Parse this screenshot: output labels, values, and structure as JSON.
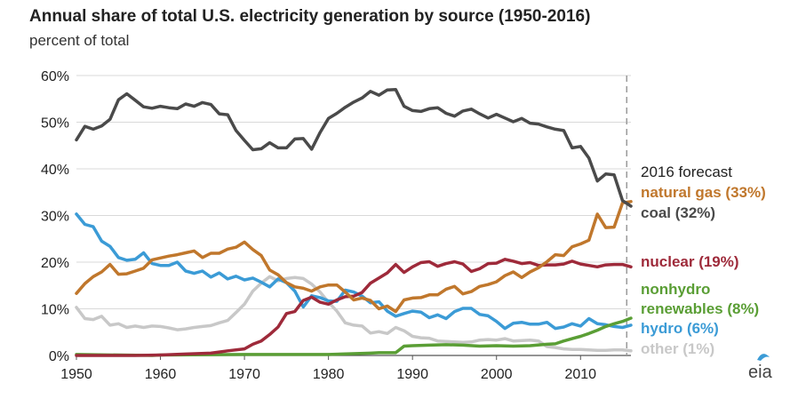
{
  "chart_data": {
    "type": "line",
    "title": "Annual share of total U.S. electricity generation by source (1950-2016)",
    "subtitle": "percent of total",
    "xlabel": "",
    "ylabel": "",
    "xlim": [
      1950,
      2016
    ],
    "ylim": [
      0,
      60
    ],
    "xticks": [
      1950,
      1960,
      1970,
      1980,
      1990,
      2000,
      2010
    ],
    "yticks": [
      0,
      10,
      20,
      30,
      40,
      50,
      60
    ],
    "ytick_labels": [
      "0%",
      "10%",
      "20%",
      "30%",
      "40%",
      "50%",
      "60%"
    ],
    "grid": "horizontal",
    "forecast_year": 2015.5,
    "forecast_label": "2016 forecast",
    "series": [
      {
        "name": "coal",
        "label": "coal (32%)",
        "color": "#4a4a4a",
        "x": [
          1950,
          1951,
          1952,
          1953,
          1954,
          1955,
          1956,
          1957,
          1958,
          1959,
          1960,
          1961,
          1962,
          1963,
          1964,
          1965,
          1966,
          1967,
          1968,
          1969,
          1970,
          1971,
          1972,
          1973,
          1974,
          1975,
          1976,
          1977,
          1978,
          1979,
          1980,
          1981,
          1982,
          1983,
          1984,
          1985,
          1986,
          1987,
          1988,
          1989,
          1990,
          1991,
          1992,
          1993,
          1994,
          1995,
          1996,
          1997,
          1998,
          1999,
          2000,
          2001,
          2002,
          2003,
          2004,
          2005,
          2006,
          2007,
          2008,
          2009,
          2010,
          2011,
          2012,
          2013,
          2014,
          2015,
          2016
        ],
        "y": [
          46.2,
          49.1,
          48.5,
          49.2,
          50.6,
          54.8,
          56.1,
          54.7,
          53.3,
          53.0,
          53.4,
          53.1,
          52.9,
          53.9,
          53.4,
          54.2,
          53.8,
          51.8,
          51.6,
          48.2,
          46.1,
          44.1,
          44.3,
          45.6,
          44.5,
          44.5,
          46.4,
          46.5,
          44.2,
          47.8,
          50.8,
          51.9,
          53.2,
          54.3,
          55.2,
          56.6,
          55.8,
          56.9,
          57.0,
          53.4,
          52.5,
          52.3,
          52.9,
          53.1,
          51.9,
          51.3,
          52.4,
          52.8,
          51.8,
          50.9,
          51.7,
          50.9,
          50.1,
          50.8,
          49.8,
          49.6,
          49.0,
          48.5,
          48.2,
          44.5,
          44.8,
          42.3,
          37.4,
          38.9,
          38.7,
          33.2,
          32.0
        ]
      },
      {
        "name": "natural gas",
        "label": "natural gas (33%)",
        "color": "#c0772c",
        "x": [
          1950,
          1951,
          1952,
          1953,
          1954,
          1955,
          1956,
          1957,
          1958,
          1959,
          1960,
          1961,
          1962,
          1963,
          1964,
          1965,
          1966,
          1967,
          1968,
          1969,
          1970,
          1971,
          1972,
          1973,
          1974,
          1975,
          1976,
          1977,
          1978,
          1979,
          1980,
          1981,
          1982,
          1983,
          1984,
          1985,
          1986,
          1987,
          1988,
          1989,
          1990,
          1991,
          1992,
          1993,
          1994,
          1995,
          1996,
          1997,
          1998,
          1999,
          2000,
          2001,
          2002,
          2003,
          2004,
          2005,
          2006,
          2007,
          2008,
          2009,
          2010,
          2011,
          2012,
          2013,
          2014,
          2015,
          2016
        ],
        "y": [
          13.3,
          15.4,
          16.9,
          17.9,
          19.5,
          17.4,
          17.5,
          18.1,
          18.7,
          20.5,
          20.9,
          21.3,
          21.6,
          22.0,
          22.4,
          21.0,
          21.9,
          21.9,
          22.8,
          23.2,
          24.3,
          22.7,
          21.4,
          18.3,
          17.3,
          15.6,
          14.7,
          14.4,
          13.8,
          14.7,
          15.1,
          15.1,
          13.6,
          11.9,
          12.3,
          11.8,
          10.0,
          10.6,
          9.4,
          11.9,
          12.3,
          12.4,
          13.0,
          13.0,
          14.2,
          14.8,
          13.2,
          13.7,
          14.8,
          15.2,
          15.8,
          17.1,
          17.9,
          16.7,
          17.9,
          18.8,
          20.1,
          21.6,
          21.4,
          23.3,
          23.9,
          24.7,
          30.3,
          27.4,
          27.5,
          32.7,
          33.0
        ]
      },
      {
        "name": "nuclear",
        "label": "nuclear (19%)",
        "color": "#9e2a3a",
        "x": [
          1950,
          1957,
          1960,
          1963,
          1966,
          1968,
          1970,
          1971,
          1972,
          1973,
          1974,
          1975,
          1976,
          1977,
          1978,
          1979,
          1980,
          1981,
          1982,
          1983,
          1984,
          1985,
          1986,
          1987,
          1988,
          1989,
          1990,
          1991,
          1992,
          1993,
          1994,
          1995,
          1996,
          1997,
          1998,
          1999,
          2000,
          2001,
          2002,
          2003,
          2004,
          2005,
          2006,
          2007,
          2008,
          2009,
          2010,
          2011,
          2012,
          2013,
          2014,
          2015,
          2016
        ],
        "y": [
          0,
          0,
          0.1,
          0.3,
          0.5,
          1.0,
          1.4,
          2.4,
          3.1,
          4.5,
          6.1,
          9.0,
          9.4,
          11.8,
          12.5,
          11.4,
          11.0,
          11.9,
          12.6,
          12.7,
          13.5,
          15.5,
          16.6,
          17.7,
          19.5,
          17.8,
          19.0,
          19.9,
          20.1,
          19.1,
          19.7,
          20.1,
          19.6,
          18.0,
          18.6,
          19.7,
          19.8,
          20.6,
          20.2,
          19.7,
          19.9,
          19.3,
          19.4,
          19.4,
          19.6,
          20.2,
          19.6,
          19.3,
          19.0,
          19.4,
          19.5,
          19.5,
          19.0
        ]
      },
      {
        "name": "nonhydro renewables",
        "label_lines": [
          "nonhydro",
          "renewables (8%)"
        ],
        "color": "#5a9e35",
        "x": [
          1950,
          1959,
          1960,
          1970,
          1980,
          1985,
          1986,
          1987,
          1988,
          1989,
          1990,
          1992,
          1994,
          1996,
          1998,
          2000,
          2002,
          2004,
          2006,
          2007,
          2008,
          2009,
          2010,
          2011,
          2012,
          2013,
          2014,
          2015,
          2016
        ],
        "y": [
          0.2,
          0,
          0.1,
          0.2,
          0.2,
          0.5,
          0.6,
          0.6,
          0.6,
          2.0,
          2.1,
          2.2,
          2.3,
          2.2,
          2.0,
          2.1,
          2.0,
          2.1,
          2.4,
          2.5,
          3.1,
          3.6,
          4.1,
          4.7,
          5.4,
          6.2,
          6.8,
          7.3,
          8.0
        ]
      },
      {
        "name": "hydro",
        "label": "hydro (6%)",
        "color": "#3b9bd6",
        "x": [
          1950,
          1951,
          1952,
          1953,
          1954,
          1955,
          1956,
          1957,
          1958,
          1959,
          1960,
          1961,
          1962,
          1963,
          1964,
          1965,
          1966,
          1967,
          1968,
          1969,
          1970,
          1971,
          1972,
          1973,
          1974,
          1975,
          1976,
          1977,
          1978,
          1979,
          1980,
          1981,
          1982,
          1983,
          1984,
          1985,
          1986,
          1987,
          1988,
          1989,
          1990,
          1991,
          1992,
          1993,
          1994,
          1995,
          1996,
          1997,
          1998,
          1999,
          2000,
          2001,
          2002,
          2003,
          2004,
          2005,
          2006,
          2007,
          2008,
          2009,
          2010,
          2011,
          2012,
          2013,
          2014,
          2015,
          2016
        ],
        "y": [
          30.3,
          28.1,
          27.6,
          24.5,
          23.4,
          21.0,
          20.4,
          20.6,
          22.0,
          19.7,
          19.3,
          19.3,
          20.0,
          18.1,
          17.6,
          18.1,
          16.8,
          17.7,
          16.4,
          17.0,
          16.2,
          16.6,
          15.7,
          14.7,
          16.4,
          15.6,
          13.8,
          10.4,
          12.8,
          12.4,
          11.7,
          11.6,
          14.0,
          13.6,
          12.7,
          11.3,
          11.5,
          9.5,
          8.4,
          9.0,
          9.5,
          9.3,
          8.1,
          8.7,
          7.9,
          9.4,
          10.1,
          10.1,
          8.8,
          8.5,
          7.3,
          5.8,
          6.9,
          7.1,
          6.7,
          6.7,
          7.1,
          5.8,
          6.1,
          6.8,
          6.3,
          7.9,
          6.8,
          6.6,
          6.2,
          6.0,
          6.5
        ]
      },
      {
        "name": "other",
        "label": "other (1%)",
        "color": "#c8c8c8",
        "x": [
          1950,
          1951,
          1952,
          1953,
          1954,
          1955,
          1956,
          1957,
          1958,
          1959,
          1960,
          1961,
          1962,
          1963,
          1964,
          1965,
          1966,
          1967,
          1968,
          1969,
          1970,
          1971,
          1972,
          1973,
          1974,
          1975,
          1976,
          1977,
          1978,
          1979,
          1980,
          1981,
          1982,
          1983,
          1984,
          1985,
          1986,
          1987,
          1988,
          1989,
          1990,
          1991,
          1992,
          1993,
          1994,
          1995,
          1996,
          1997,
          1998,
          1999,
          2000,
          2001,
          2002,
          2003,
          2004,
          2005,
          2006,
          2007,
          2008,
          2009,
          2010,
          2011,
          2012,
          2013,
          2014,
          2015,
          2016
        ],
        "y": [
          10.3,
          7.9,
          7.7,
          8.4,
          6.5,
          6.8,
          6.0,
          6.3,
          6.0,
          6.3,
          6.2,
          5.9,
          5.5,
          5.7,
          6.0,
          6.2,
          6.4,
          7.0,
          7.5,
          9.2,
          11.0,
          13.8,
          15.5,
          16.9,
          16.0,
          16.5,
          16.7,
          16.5,
          15.3,
          13.6,
          11.4,
          9.5,
          7.0,
          6.5,
          6.3,
          4.8,
          5.1,
          4.7,
          6.0,
          5.3,
          4.1,
          3.8,
          3.7,
          3.1,
          3.0,
          2.9,
          2.8,
          2.9,
          3.3,
          3.4,
          3.3,
          3.6,
          3.1,
          3.2,
          3.3,
          3.1,
          1.9,
          1.7,
          1.4,
          1.3,
          1.3,
          1.2,
          1.1,
          1.1,
          1.2,
          1.2,
          1.0
        ]
      }
    ]
  },
  "logo": {
    "text": "eia",
    "color": "#3b9bd6"
  }
}
